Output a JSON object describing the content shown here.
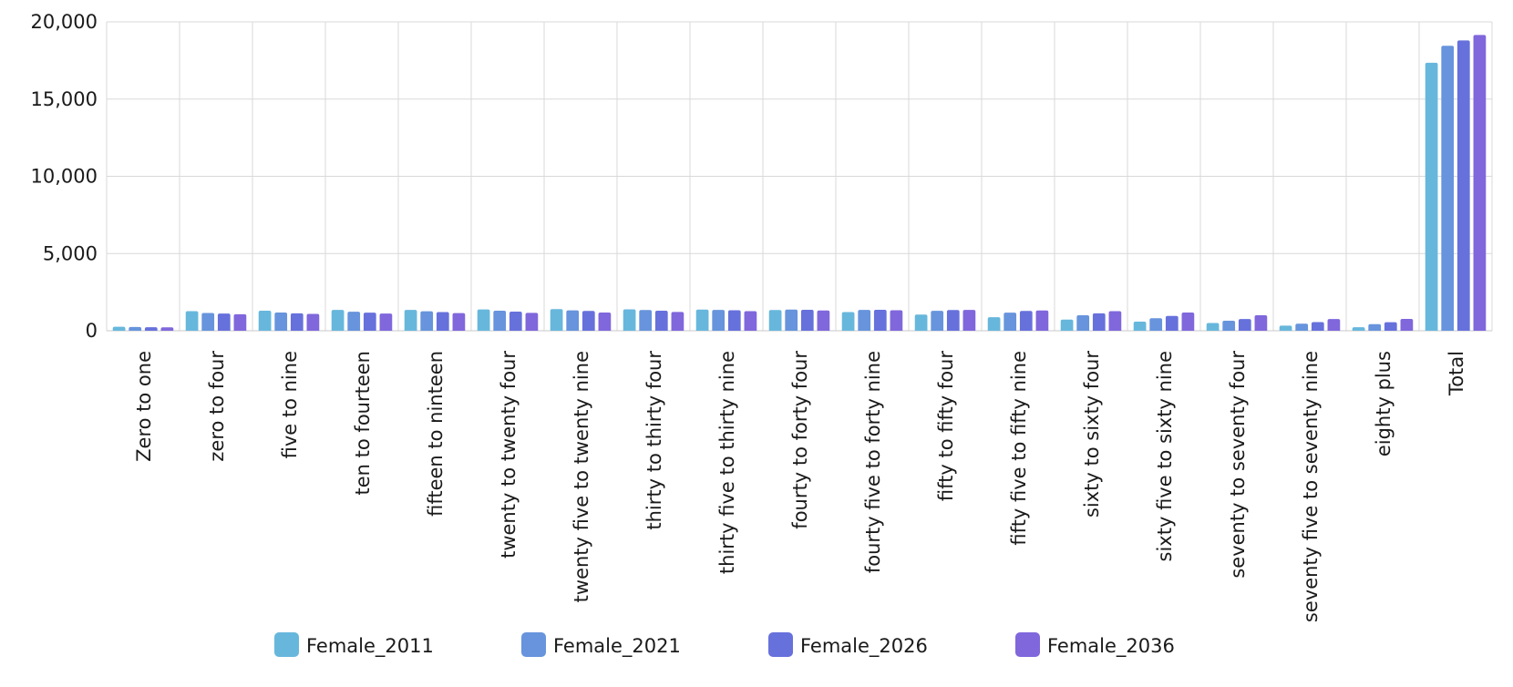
{
  "chart_data": {
    "type": "bar",
    "title": "",
    "xlabel": "",
    "ylabel": "",
    "ylim": [
      0,
      20000
    ],
    "yticks": [
      "0",
      "5,000",
      "10,000",
      "15,000",
      "20,000"
    ],
    "ytick_values": [
      0,
      5000,
      10000,
      15000,
      20000
    ],
    "grid": true,
    "legend_position": "bottom",
    "categories": [
      "Zero to one",
      "zero to four",
      "five to nine",
      "ten to fourteen",
      "fifteen to ninteen",
      "twenty to twenty four",
      "twenty five to twenty nine",
      "thirty to thirty four",
      "thirty five to thirty nine",
      "fourty to forty four",
      "fourty five to forty nine",
      "fifty to fifty four",
      "fifty five to fifty nine",
      "sixty to sixty four",
      "sixty five to sixty nine",
      "seventy to seventy four",
      "seventy five to seventy nine",
      "eighty plus",
      "Total"
    ],
    "series": [
      {
        "name": "Female_2011",
        "color": "#67b7dc",
        "values": [
          260,
          1270,
          1300,
          1350,
          1350,
          1380,
          1400,
          1390,
          1370,
          1340,
          1210,
          1050,
          880,
          720,
          590,
          500,
          330,
          230,
          17350
        ]
      },
      {
        "name": "Female_2021",
        "color": "#6794dc",
        "values": [
          240,
          1150,
          1180,
          1230,
          1260,
          1300,
          1320,
          1340,
          1350,
          1370,
          1350,
          1290,
          1170,
          1000,
          810,
          650,
          460,
          430,
          18450
        ]
      },
      {
        "name": "Female_2026",
        "color": "#6771dc",
        "values": [
          230,
          1110,
          1130,
          1170,
          1210,
          1240,
          1280,
          1300,
          1330,
          1360,
          1360,
          1340,
          1280,
          1130,
          960,
          760,
          560,
          550,
          18800
        ]
      },
      {
        "name": "Female_2036",
        "color": "#8067dc",
        "values": [
          220,
          1070,
          1090,
          1110,
          1140,
          1160,
          1180,
          1220,
          1270,
          1310,
          1330,
          1350,
          1310,
          1270,
          1180,
          1000,
          760,
          770,
          19150
        ]
      }
    ]
  }
}
